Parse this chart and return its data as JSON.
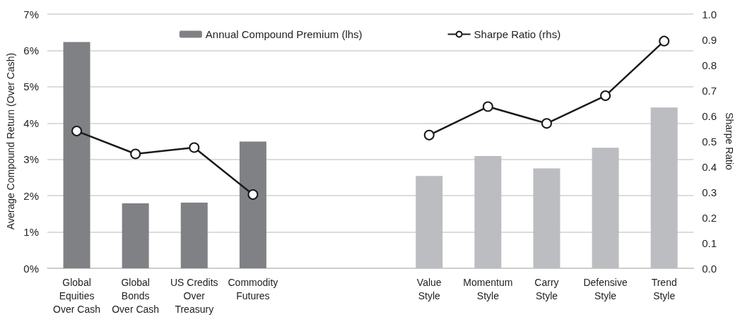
{
  "chart_data": {
    "type": "bar",
    "categories": [
      "Global\nEquities\nOver Cash",
      "Global\nBonds\nOver Cash",
      "US Credits\nOver\nTreasury",
      "Commodity\nFutures",
      null,
      null,
      "Value\nStyle",
      "Momentum\nStyle",
      "Carry\nStyle",
      "Defensive\nStyle",
      "Trend\nStyle"
    ],
    "series": [
      {
        "name": "Annual Compound Premium (lhs)",
        "color": "#808184",
        "colors": [
          "#808184",
          "#808184",
          "#808184",
          "#808184",
          null,
          null,
          "#bcbdc0",
          "#bcbdc0",
          "#bcbdc0",
          "#bcbdc0",
          "#bcbdc0"
        ],
        "values": [
          6.23,
          1.79,
          1.81,
          3.49,
          null,
          null,
          2.54,
          3.09,
          2.75,
          3.32,
          4.43
        ]
      },
      {
        "name": "Sharpe Ratio (rhs)",
        "type": "line",
        "axis": "y2",
        "color": "#1a1a1a",
        "marker": "circle",
        "values": [
          0.54,
          0.45,
          0.475,
          0.29,
          null,
          null,
          0.524,
          0.636,
          0.57,
          0.679,
          0.894
        ]
      }
    ],
    "ylabel": "Average Compound Return (Over Cash)",
    "y2label": "Sharpe Ratio",
    "ylim": [
      0,
      7
    ],
    "yticks": [
      {
        "value": 0,
        "label": "0%"
      },
      {
        "value": 1,
        "label": "1%"
      },
      {
        "value": 2,
        "label": "2%"
      },
      {
        "value": 3,
        "label": "3%"
      },
      {
        "value": 4,
        "label": "4%"
      },
      {
        "value": 5,
        "label": "5%"
      },
      {
        "value": 6,
        "label": "6%"
      },
      {
        "value": 7,
        "label": "7%"
      }
    ],
    "y2lim": [
      0,
      1
    ],
    "y2ticks": [
      {
        "value": 0,
        "label": "0.0"
      },
      {
        "value": 0.1,
        "label": "0.1"
      },
      {
        "value": 0.2,
        "label": "0.2"
      },
      {
        "value": 0.3,
        "label": "0.3"
      },
      {
        "value": 0.4,
        "label": "0.4"
      },
      {
        "value": 0.5,
        "label": "0.5"
      },
      {
        "value": 0.6,
        "label": "0.6"
      },
      {
        "value": 0.7,
        "label": "0.7"
      },
      {
        "value": 0.8,
        "label": "0.8"
      },
      {
        "value": 0.9,
        "label": "0.9"
      },
      {
        "value": 1,
        "label": "1.0"
      }
    ],
    "grid": "y",
    "legend": "top"
  }
}
